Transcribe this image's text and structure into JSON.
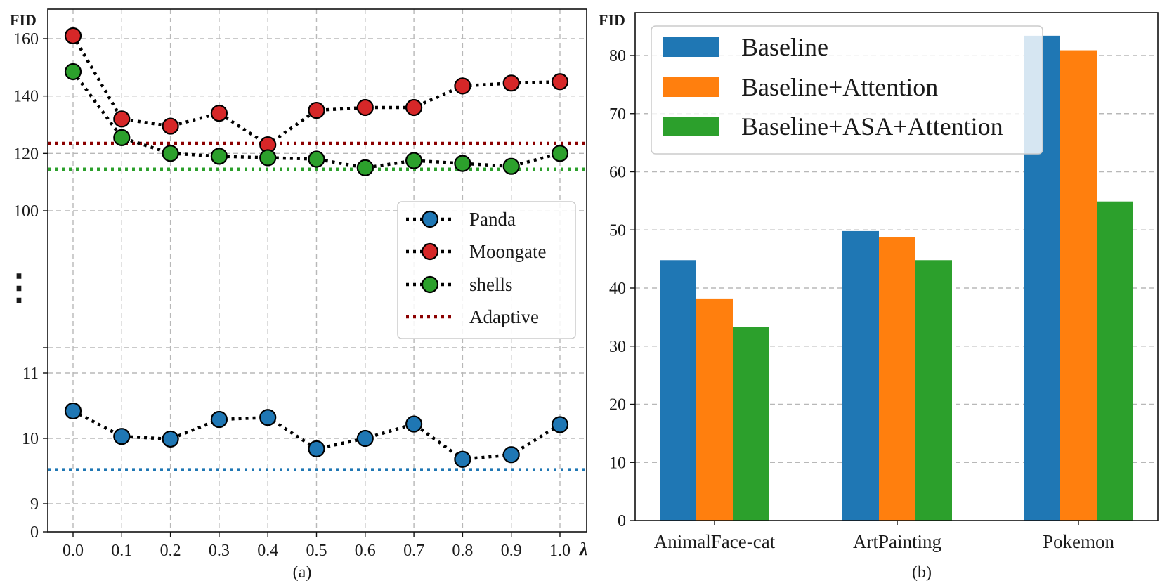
{
  "chart_data": [
    {
      "type": "line",
      "panel_label": "(a)",
      "ylabel": "FID",
      "xlabel": "λ",
      "axis_break_marker": "⋮",
      "x": [
        0.0,
        0.1,
        0.2,
        0.3,
        0.4,
        0.5,
        0.6,
        0.7,
        0.8,
        0.9,
        1.0
      ],
      "x_tick_labels": [
        "0.0",
        "0.1",
        "0.2",
        "0.3",
        "0.4",
        "0.5",
        "0.6",
        "0.7",
        "0.8",
        "0.9",
        "1.0"
      ],
      "y_tick_labels": [
        "0",
        "9",
        "10",
        "11",
        "100",
        "120",
        "140",
        "160"
      ],
      "ylim_upper_segment": [
        90,
        165
      ],
      "ylim_lower_segment": [
        8.5,
        11.4
      ],
      "grid": true,
      "legend_position": "center-right",
      "series": [
        {
          "name": "Panda",
          "color": "#1f77b4",
          "values": [
            10.42,
            10.03,
            9.99,
            10.29,
            10.32,
            9.84,
            10.0,
            10.22,
            9.68,
            9.75,
            10.21
          ],
          "adaptive": 9.52
        },
        {
          "name": "Moongate",
          "color": "#d62728",
          "values": [
            161,
            132,
            129.5,
            134,
            123,
            135,
            136,
            136,
            143.5,
            144.5,
            145
          ],
          "adaptive": 123.5
        },
        {
          "name": "shells",
          "color": "#2ca02c",
          "values": [
            148.5,
            125.5,
            120,
            119,
            118.5,
            118,
            115,
            117.5,
            116.5,
            115.5,
            120
          ],
          "adaptive": 114.5
        }
      ],
      "legend_extra": {
        "name": "Adaptive",
        "color": "#8b0000"
      }
    },
    {
      "type": "bar",
      "panel_label": "(b)",
      "ylabel": "FID",
      "categories": [
        "AnimalFace-cat",
        "ArtPainting",
        "Pokemon"
      ],
      "ylim": [
        0,
        87
      ],
      "y_tick_labels": [
        "0",
        "10",
        "20",
        "30",
        "40",
        "50",
        "60",
        "70",
        "80"
      ],
      "grid": true,
      "legend_position": "top-left",
      "series": [
        {
          "name": "Baseline",
          "color": "#1f77b4",
          "values": [
            44.8,
            49.8,
            83.4
          ]
        },
        {
          "name": "Baseline+Attention",
          "color": "#ff7f0e",
          "values": [
            38.2,
            48.7,
            80.9
          ]
        },
        {
          "name": "Baseline+ASA+Attention",
          "color": "#2ca02c",
          "values": [
            33.3,
            44.8,
            54.9
          ]
        }
      ]
    }
  ]
}
